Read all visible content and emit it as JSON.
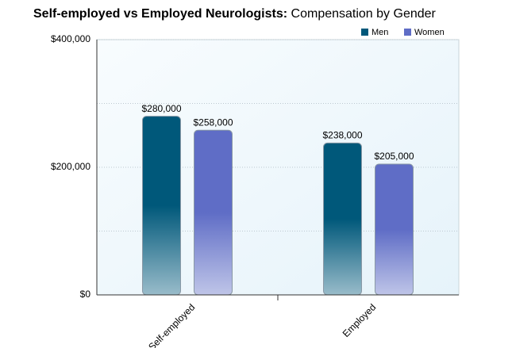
{
  "chart_data": {
    "type": "bar",
    "title": "Self-employed vs Employed Neurologists:",
    "subtitle": "Compensation by Gender",
    "categories": [
      "Self-employed",
      "Employed"
    ],
    "series": [
      {
        "name": "Men",
        "color": "#00587a",
        "values": [
          280000,
          238000
        ],
        "value_labels": [
          "$280,000",
          "$238,000"
        ]
      },
      {
        "name": "Women",
        "color": "#5f6dc6",
        "values": [
          258000,
          205000
        ],
        "value_labels": [
          "$258,000",
          "$205,000"
        ]
      }
    ],
    "ylim": [
      0,
      400000
    ],
    "yticks": [
      {
        "value": 0,
        "label": "$0"
      },
      {
        "value": 200000,
        "label": "$200,000"
      },
      {
        "value": 400000,
        "label": "$400,000"
      }
    ],
    "yminor": [
      100000,
      300000
    ],
    "grid": true,
    "legend": "top-right"
  }
}
